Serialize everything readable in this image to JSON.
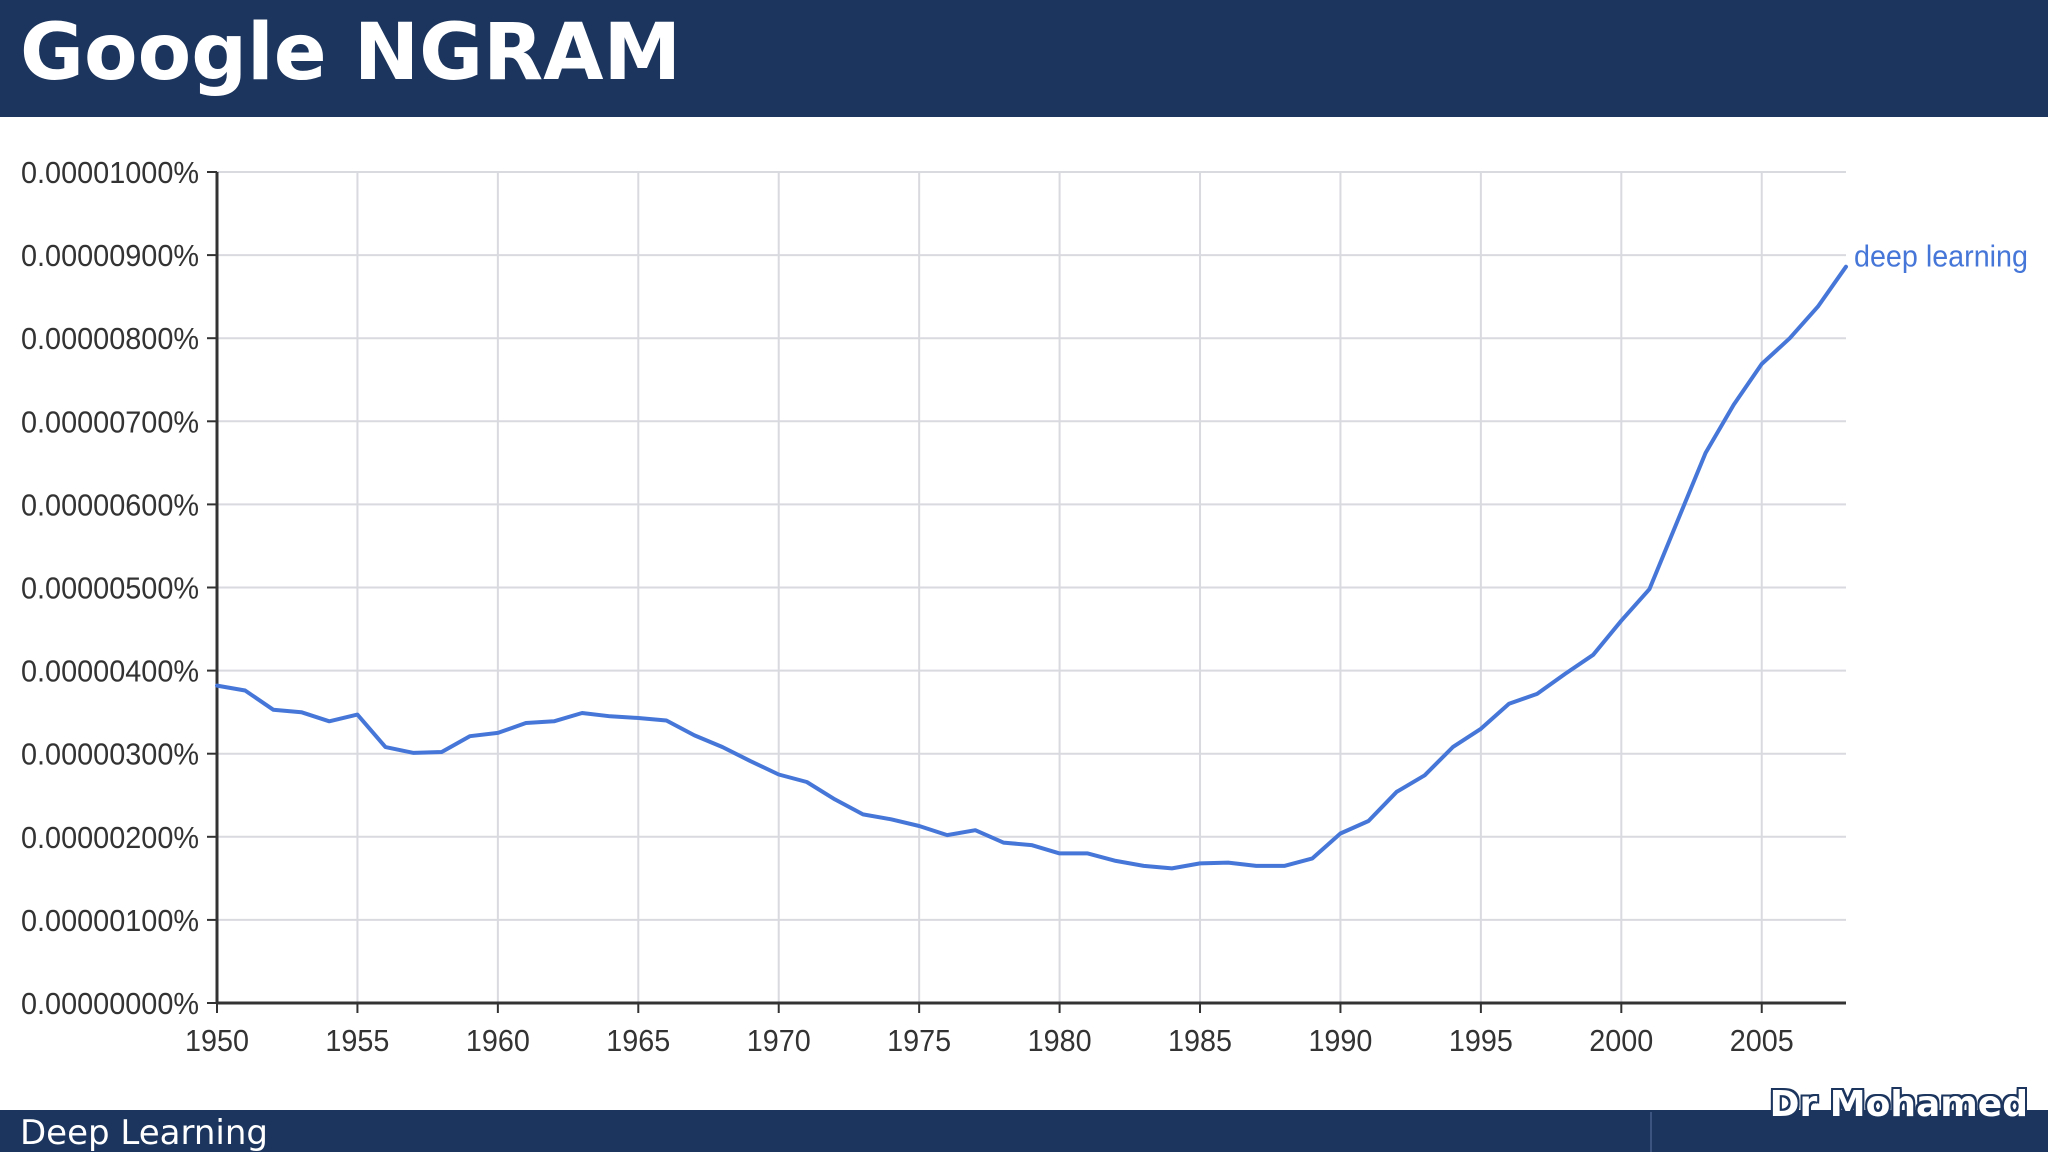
{
  "slide": {
    "title": "Google NGRAM",
    "footer": "Deep Learning",
    "watermark": "Dr Mohamed"
  },
  "colors": {
    "header": "#1b355e",
    "series": "#4677d8",
    "grid": "#d9d9e0",
    "axis": "#333333"
  },
  "chart_data": {
    "type": "line",
    "title": "",
    "xlabel": "",
    "ylabel": "",
    "xlim": [
      1950,
      2008
    ],
    "ylim": [
      0,
      1e-05
    ],
    "grid": true,
    "legend": "inline at line end",
    "x_ticks": [
      1950,
      1955,
      1960,
      1965,
      1970,
      1975,
      1980,
      1985,
      1990,
      1995,
      2000,
      2005
    ],
    "x_tick_labels": [
      "1950",
      "1955",
      "1960",
      "1965",
      "1970",
      "1975",
      "1980",
      "1985",
      "1990",
      "1995",
      "2000",
      "2005"
    ],
    "y_ticks": [
      0,
      1e-06,
      2e-06,
      3e-06,
      4e-06,
      5e-06,
      6e-06,
      7e-06,
      8e-06,
      9e-06,
      1e-05
    ],
    "y_tick_labels": [
      "0.00000000%",
      "0.00000100%",
      "0.00000200%",
      "0.00000300%",
      "0.00000400%",
      "0.00000500%",
      "0.00000600%",
      "0.00000700%",
      "0.00000800%",
      "0.00000900%",
      "0.00001000%"
    ],
    "x": [
      1950,
      1951,
      1952,
      1953,
      1954,
      1955,
      1956,
      1957,
      1958,
      1959,
      1960,
      1961,
      1962,
      1963,
      1964,
      1965,
      1966,
      1967,
      1968,
      1969,
      1970,
      1971,
      1972,
      1973,
      1974,
      1975,
      1976,
      1977,
      1978,
      1979,
      1980,
      1981,
      1982,
      1983,
      1984,
      1985,
      1986,
      1987,
      1988,
      1989,
      1990,
      1991,
      1992,
      1993,
      1994,
      1995,
      1996,
      1997,
      1998,
      1999,
      2000,
      2001,
      2002,
      2003,
      2004,
      2005,
      2006,
      2007,
      2008
    ],
    "series": [
      {
        "name": "deep learning",
        "values": [
          3.82e-06,
          3.76e-06,
          3.53e-06,
          3.5e-06,
          3.39e-06,
          3.47e-06,
          3.08e-06,
          3.01e-06,
          3.02e-06,
          3.21e-06,
          3.25e-06,
          3.37e-06,
          3.39e-06,
          3.49e-06,
          3.45e-06,
          3.43e-06,
          3.4e-06,
          3.22e-06,
          3.08e-06,
          2.91e-06,
          2.75e-06,
          2.66e-06,
          2.45e-06,
          2.27e-06,
          2.21e-06,
          2.13e-06,
          2.02e-06,
          2.08e-06,
          1.93e-06,
          1.9e-06,
          1.8e-06,
          1.8e-06,
          1.71e-06,
          1.65e-06,
          1.62e-06,
          1.68e-06,
          1.69e-06,
          1.65e-06,
          1.65e-06,
          1.74e-06,
          2.04e-06,
          2.19e-06,
          2.54e-06,
          2.74e-06,
          3.08e-06,
          3.3e-06,
          3.6e-06,
          3.72e-06,
          3.96e-06,
          4.19e-06,
          4.6e-06,
          4.98e-06,
          5.8e-06,
          6.62e-06,
          7.2e-06,
          7.69e-06,
          8e-06,
          8.38e-06,
          8.86e-06
        ]
      }
    ]
  }
}
